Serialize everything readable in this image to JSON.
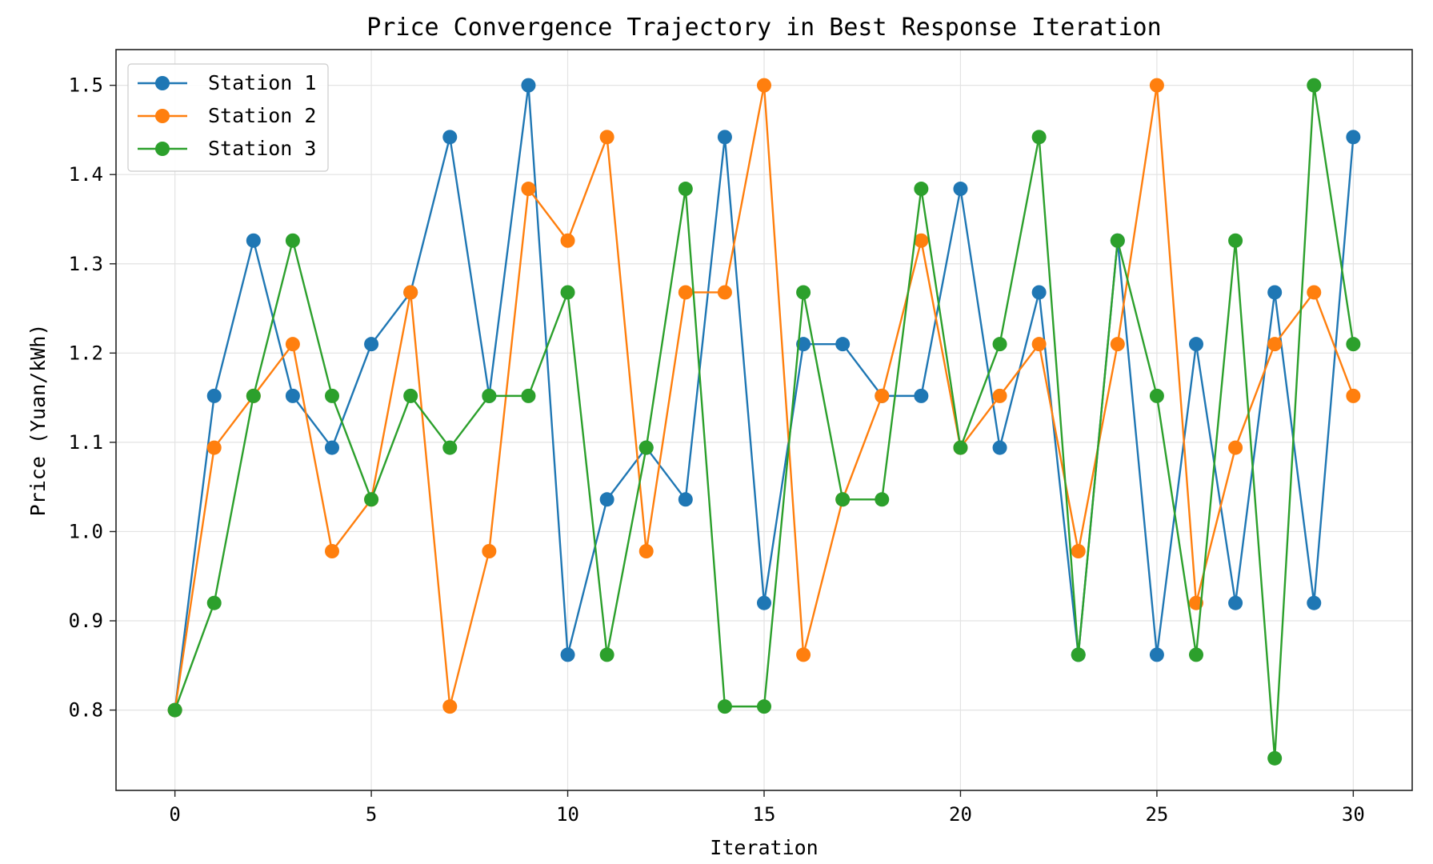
{
  "chart_data": {
    "type": "line",
    "title": "Price Convergence Trajectory in Best Response Iteration",
    "xlabel": "Iteration",
    "ylabel": "Price (Yuan/kWh)",
    "xlim": [
      -1.5,
      31.5
    ],
    "ylim": [
      0.71,
      1.54
    ],
    "xticks": [
      0,
      5,
      10,
      15,
      20,
      25,
      30
    ],
    "xtick_labels": [
      "0",
      "5",
      "10",
      "15",
      "20",
      "25",
      "30"
    ],
    "yticks": [
      0.8,
      0.9,
      1.0,
      1.1,
      1.2,
      1.3,
      1.4,
      1.5
    ],
    "ytick_labels": [
      "0.8",
      "0.9",
      "1.0",
      "1.1",
      "1.2",
      "1.3",
      "1.4",
      "1.5"
    ],
    "grid": true,
    "legend_position": "top-left",
    "x": [
      0,
      1,
      2,
      3,
      4,
      5,
      6,
      7,
      8,
      9,
      10,
      11,
      12,
      13,
      14,
      15,
      16,
      17,
      18,
      19,
      20,
      21,
      22,
      23,
      24,
      25,
      26,
      27,
      28,
      29,
      30
    ],
    "series": [
      {
        "name": "Station 1",
        "color": "#1f77b4",
        "values": [
          0.8,
          1.152,
          1.326,
          1.152,
          1.094,
          1.21,
          1.268,
          1.442,
          1.152,
          1.5,
          0.862,
          1.036,
          1.094,
          1.036,
          1.442,
          0.92,
          1.21,
          1.21,
          1.152,
          1.152,
          1.384,
          1.094,
          1.268,
          0.862,
          1.326,
          0.862,
          1.21,
          0.92,
          1.268,
          0.92,
          1.442
        ]
      },
      {
        "name": "Station 2",
        "color": "#ff7f0e",
        "values": [
          0.8,
          1.094,
          1.152,
          1.21,
          0.978,
          1.036,
          1.268,
          0.804,
          0.978,
          1.384,
          1.326,
          1.442,
          0.978,
          1.268,
          1.268,
          1.5,
          0.862,
          1.036,
          1.152,
          1.326,
          1.094,
          1.152,
          1.21,
          0.978,
          1.21,
          1.5,
          0.92,
          1.094,
          1.21,
          1.268,
          1.152
        ]
      },
      {
        "name": "Station 3",
        "color": "#2ca02c",
        "values": [
          0.8,
          0.92,
          1.152,
          1.326,
          1.152,
          1.036,
          1.152,
          1.094,
          1.152,
          1.152,
          1.268,
          0.862,
          1.094,
          1.384,
          0.804,
          0.804,
          1.268,
          1.036,
          1.036,
          1.384,
          1.094,
          1.21,
          1.442,
          0.862,
          1.326,
          1.152,
          0.862,
          1.326,
          0.746,
          1.5,
          1.21
        ]
      }
    ]
  }
}
